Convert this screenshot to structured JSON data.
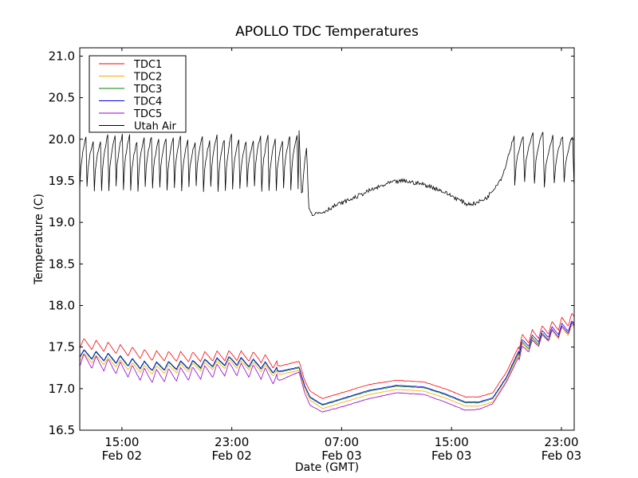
{
  "chart_data": {
    "type": "line",
    "title": "APOLLO TDC Temperatures",
    "xlabel": "Date (GMT)",
    "ylabel": "Temperature (C)",
    "x_units": "hours since 00:00 Feb 02 (GMT)",
    "xlim": [
      11.93,
      47.93
    ],
    "ylim": [
      16.5,
      21.1
    ],
    "grid": false,
    "legend_position": "top-left",
    "yticks": [
      16.5,
      17.0,
      17.5,
      18.0,
      18.5,
      19.0,
      19.5,
      20.0,
      20.5,
      21.0
    ],
    "ytick_labels": [
      "16.5",
      "17.0",
      "17.5",
      "18.0",
      "18.5",
      "19.0",
      "19.5",
      "20.0",
      "20.5",
      "21.0"
    ],
    "xticks": [
      {
        "x": 15,
        "time": "15:00",
        "date": "Feb 02"
      },
      {
        "x": 23,
        "time": "23:00",
        "date": "Feb 02"
      },
      {
        "x": 31,
        "time": "07:00",
        "date": "Feb 03"
      },
      {
        "x": 39,
        "time": "15:00",
        "date": "Feb 03"
      },
      {
        "x": 47,
        "time": "23:00",
        "date": "Feb 03"
      }
    ],
    "series": [
      {
        "name": "TDC1",
        "color": "#ff0000",
        "base": [
          [
            11.93,
            17.55
          ],
          [
            14,
            17.5
          ],
          [
            17,
            17.4
          ],
          [
            20,
            17.38
          ],
          [
            23,
            17.4
          ],
          [
            25,
            17.38
          ],
          [
            26.5,
            17.27
          ],
          [
            27.9,
            17.33
          ],
          [
            28.3,
            17.1
          ],
          [
            28.7,
            16.97
          ],
          [
            29.6,
            16.88
          ],
          [
            31,
            16.95
          ],
          [
            33,
            17.05
          ],
          [
            35,
            17.1
          ],
          [
            37,
            17.08
          ],
          [
            38.5,
            17.0
          ],
          [
            40,
            16.9
          ],
          [
            41,
            16.9
          ],
          [
            42,
            16.95
          ],
          [
            43,
            17.2
          ],
          [
            44.1,
            17.58
          ],
          [
            46,
            17.72
          ],
          [
            47.93,
            17.85
          ]
        ],
        "ripple": [
          {
            "from": 11.93,
            "to": 26.3,
            "period": 0.88,
            "amp": 0.06
          },
          {
            "from": 43.9,
            "to": 47.93,
            "period": 0.72,
            "amp": 0.07
          }
        ]
      },
      {
        "name": "TDC2",
        "color": "#ffa500",
        "base": [
          [
            11.93,
            17.38
          ],
          [
            14,
            17.33
          ],
          [
            17,
            17.22
          ],
          [
            20,
            17.25
          ],
          [
            23,
            17.3
          ],
          [
            25,
            17.26
          ],
          [
            26.5,
            17.17
          ],
          [
            27.9,
            17.22
          ],
          [
            28.3,
            17.0
          ],
          [
            28.7,
            16.86
          ],
          [
            29.6,
            16.76
          ],
          [
            31,
            16.83
          ],
          [
            33,
            16.93
          ],
          [
            35,
            16.99
          ],
          [
            37,
            16.97
          ],
          [
            38.5,
            16.89
          ],
          [
            40,
            16.79
          ],
          [
            41,
            16.79
          ],
          [
            42,
            16.84
          ],
          [
            43,
            17.1
          ],
          [
            44.1,
            17.48
          ],
          [
            46,
            17.62
          ],
          [
            47.93,
            17.72
          ]
        ],
        "ripple": [
          {
            "from": 11.93,
            "to": 26.3,
            "period": 0.88,
            "amp": 0.05
          },
          {
            "from": 43.9,
            "to": 47.93,
            "period": 0.72,
            "amp": 0.06
          }
        ]
      },
      {
        "name": "TDC3",
        "color": "#008000",
        "base": [
          [
            11.93,
            17.42
          ],
          [
            14,
            17.37
          ],
          [
            17,
            17.26
          ],
          [
            20,
            17.28
          ],
          [
            23,
            17.33
          ],
          [
            25,
            17.29
          ],
          [
            26.5,
            17.2
          ],
          [
            27.9,
            17.25
          ],
          [
            28.3,
            17.03
          ],
          [
            28.7,
            16.89
          ],
          [
            29.6,
            16.8
          ],
          [
            31,
            16.87
          ],
          [
            33,
            16.97
          ],
          [
            35,
            17.03
          ],
          [
            37,
            17.01
          ],
          [
            38.5,
            16.93
          ],
          [
            40,
            16.83
          ],
          [
            41,
            16.83
          ],
          [
            42,
            16.88
          ],
          [
            43,
            17.13
          ],
          [
            44.1,
            17.5
          ],
          [
            46,
            17.64
          ],
          [
            47.93,
            17.74
          ]
        ],
        "ripple": [
          {
            "from": 11.93,
            "to": 26.3,
            "period": 0.88,
            "amp": 0.05
          },
          {
            "from": 43.9,
            "to": 47.93,
            "period": 0.72,
            "amp": 0.06
          }
        ]
      },
      {
        "name": "TDC4",
        "color": "#0000ff",
        "base": [
          [
            11.93,
            17.43
          ],
          [
            14,
            17.38
          ],
          [
            17,
            17.27
          ],
          [
            20,
            17.29
          ],
          [
            23,
            17.34
          ],
          [
            25,
            17.3
          ],
          [
            26.5,
            17.21
          ],
          [
            27.9,
            17.26
          ],
          [
            28.3,
            17.04
          ],
          [
            28.7,
            16.9
          ],
          [
            29.6,
            16.81
          ],
          [
            31,
            16.88
          ],
          [
            33,
            16.98
          ],
          [
            35,
            17.04
          ],
          [
            37,
            17.02
          ],
          [
            38.5,
            16.94
          ],
          [
            40,
            16.84
          ],
          [
            41,
            16.84
          ],
          [
            42,
            16.89
          ],
          [
            43,
            17.14
          ],
          [
            44.1,
            17.53
          ],
          [
            46,
            17.67
          ],
          [
            47.93,
            17.77
          ]
        ],
        "ripple": [
          {
            "from": 11.93,
            "to": 26.3,
            "period": 0.88,
            "amp": 0.05
          },
          {
            "from": 43.9,
            "to": 47.93,
            "period": 0.72,
            "amp": 0.06
          }
        ]
      },
      {
        "name": "TDC5",
        "color": "#9400d3",
        "base": [
          [
            11.93,
            17.35
          ],
          [
            14,
            17.28
          ],
          [
            17,
            17.15
          ],
          [
            20,
            17.18
          ],
          [
            23,
            17.24
          ],
          [
            25,
            17.2
          ],
          [
            26.5,
            17.1
          ],
          [
            27.9,
            17.2
          ],
          [
            28.3,
            16.95
          ],
          [
            28.7,
            16.8
          ],
          [
            29.6,
            16.72
          ],
          [
            31,
            16.78
          ],
          [
            33,
            16.88
          ],
          [
            35,
            16.95
          ],
          [
            37,
            16.93
          ],
          [
            38.5,
            16.84
          ],
          [
            40,
            16.74
          ],
          [
            41,
            16.75
          ],
          [
            42,
            16.82
          ],
          [
            43,
            17.08
          ],
          [
            44.1,
            17.45
          ],
          [
            46,
            17.63
          ],
          [
            47.93,
            17.75
          ]
        ],
        "ripple": [
          {
            "from": 11.93,
            "to": 26.3,
            "period": 0.88,
            "amp": 0.08
          },
          {
            "from": 43.9,
            "to": 47.93,
            "period": 0.72,
            "amp": 0.06
          }
        ]
      },
      {
        "name": "Utah Air",
        "color": "#000000",
        "sawtooth": [
          {
            "from": 11.93,
            "to": 27.9,
            "period": 0.53,
            "low": 19.4,
            "high": 20.02
          },
          {
            "from": 43.6,
            "to": 47.93,
            "period": 0.72,
            "low": 19.45,
            "high": 20.07
          }
        ],
        "base": [
          [
            27.9,
            20.1
          ],
          [
            28.0,
            19.6
          ],
          [
            28.1,
            19.3
          ],
          [
            28.3,
            19.75
          ],
          [
            28.45,
            19.9
          ],
          [
            28.6,
            19.2
          ],
          [
            28.8,
            19.1
          ],
          [
            29.6,
            19.12
          ],
          [
            30.5,
            19.2
          ],
          [
            31.7,
            19.28
          ],
          [
            33,
            19.38
          ],
          [
            34.6,
            19.48
          ],
          [
            35.5,
            19.5
          ],
          [
            36.9,
            19.46
          ],
          [
            38,
            19.4
          ],
          [
            39,
            19.32
          ],
          [
            40.1,
            19.22
          ],
          [
            40.8,
            19.23
          ],
          [
            41.6,
            19.3
          ],
          [
            42.7,
            19.55
          ],
          [
            43.6,
            20.07
          ]
        ],
        "noise": 0.025
      }
    ]
  }
}
